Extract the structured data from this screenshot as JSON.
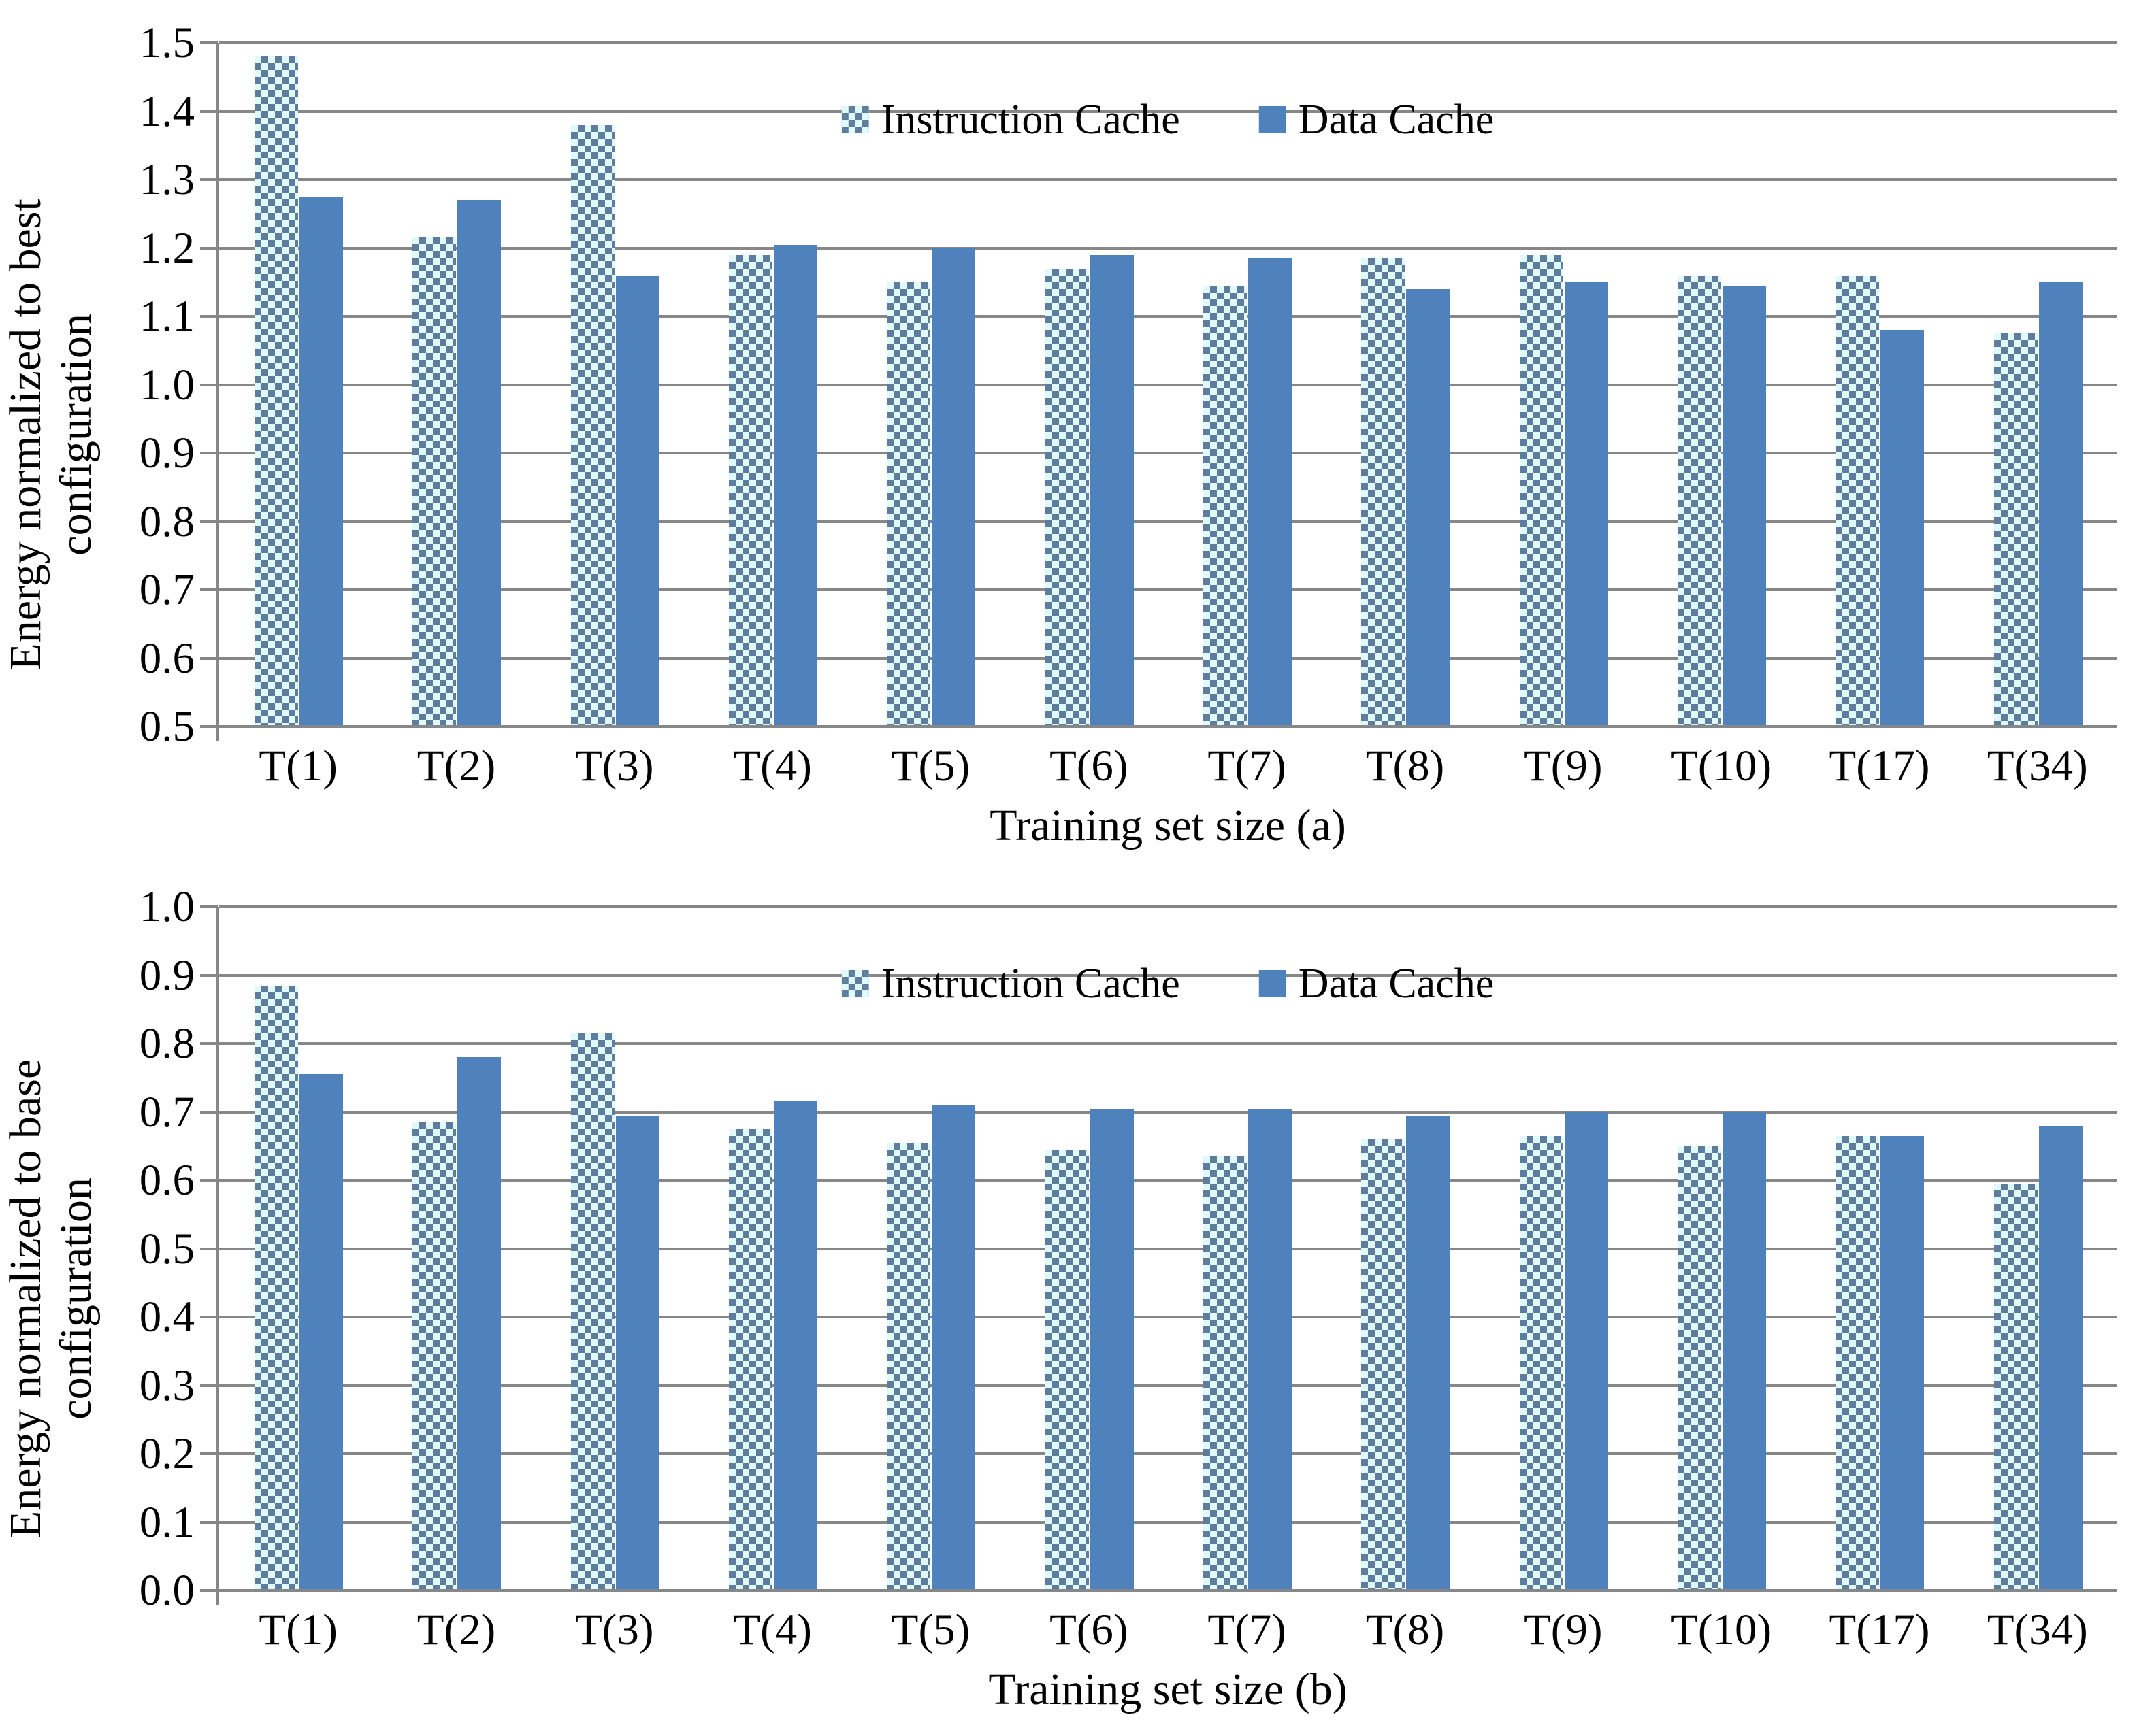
{
  "figure": {
    "background": "#ffffff"
  },
  "colors": {
    "solid_bar": "#4f81bd",
    "checker_dark": "#5e7d9c",
    "checker_light": "#e0fafb",
    "gridline": "#878787",
    "text": "#000000"
  },
  "chart_data": [
    {
      "type": "bar",
      "panel": "a",
      "title": "",
      "xlabel": "Training set size (a)",
      "ylabel": "Energy normalized to best configuration",
      "ylabel_lines": [
        "Energy normalized to best",
        "configuration"
      ],
      "ylim": [
        0.5,
        1.5
      ],
      "ytick_step": 0.1,
      "grid": true,
      "legend_position": "top-center-inside",
      "categories": [
        "T(1)",
        "T(2)",
        "T(3)",
        "T(4)",
        "T(5)",
        "T(6)",
        "T(7)",
        "T(8)",
        "T(9)",
        "T(10)",
        "T(17)",
        "T(34)"
      ],
      "series": [
        {
          "name": "Instruction Cache",
          "style": "checker",
          "values": [
            1.48,
            1.215,
            1.38,
            1.19,
            1.15,
            1.17,
            1.145,
            1.185,
            1.19,
            1.16,
            1.16,
            1.075
          ]
        },
        {
          "name": "Data Cache",
          "style": "solid",
          "values": [
            1.275,
            1.27,
            1.16,
            1.205,
            1.2,
            1.19,
            1.185,
            1.14,
            1.15,
            1.145,
            1.08,
            1.15
          ]
        }
      ]
    },
    {
      "type": "bar",
      "panel": "b",
      "title": "",
      "xlabel": "Training set size (b)",
      "ylabel": "Energy normalized to base configuration",
      "ylabel_lines": [
        "Energy normalized to base",
        "configuration"
      ],
      "ylim": [
        0.0,
        1.0
      ],
      "ytick_step": 0.1,
      "grid": true,
      "legend_position": "top-center-inside",
      "categories": [
        "T(1)",
        "T(2)",
        "T(3)",
        "T(4)",
        "T(5)",
        "T(6)",
        "T(7)",
        "T(8)",
        "T(9)",
        "T(10)",
        "T(17)",
        "T(34)"
      ],
      "series": [
        {
          "name": "Instruction Cache",
          "style": "checker",
          "values": [
            0.885,
            0.685,
            0.815,
            0.675,
            0.655,
            0.645,
            0.635,
            0.66,
            0.665,
            0.65,
            0.665,
            0.595
          ]
        },
        {
          "name": "Data Cache",
          "style": "solid",
          "values": [
            0.755,
            0.78,
            0.695,
            0.715,
            0.71,
            0.705,
            0.705,
            0.695,
            0.7,
            0.7,
            0.665,
            0.68
          ]
        }
      ]
    }
  ]
}
